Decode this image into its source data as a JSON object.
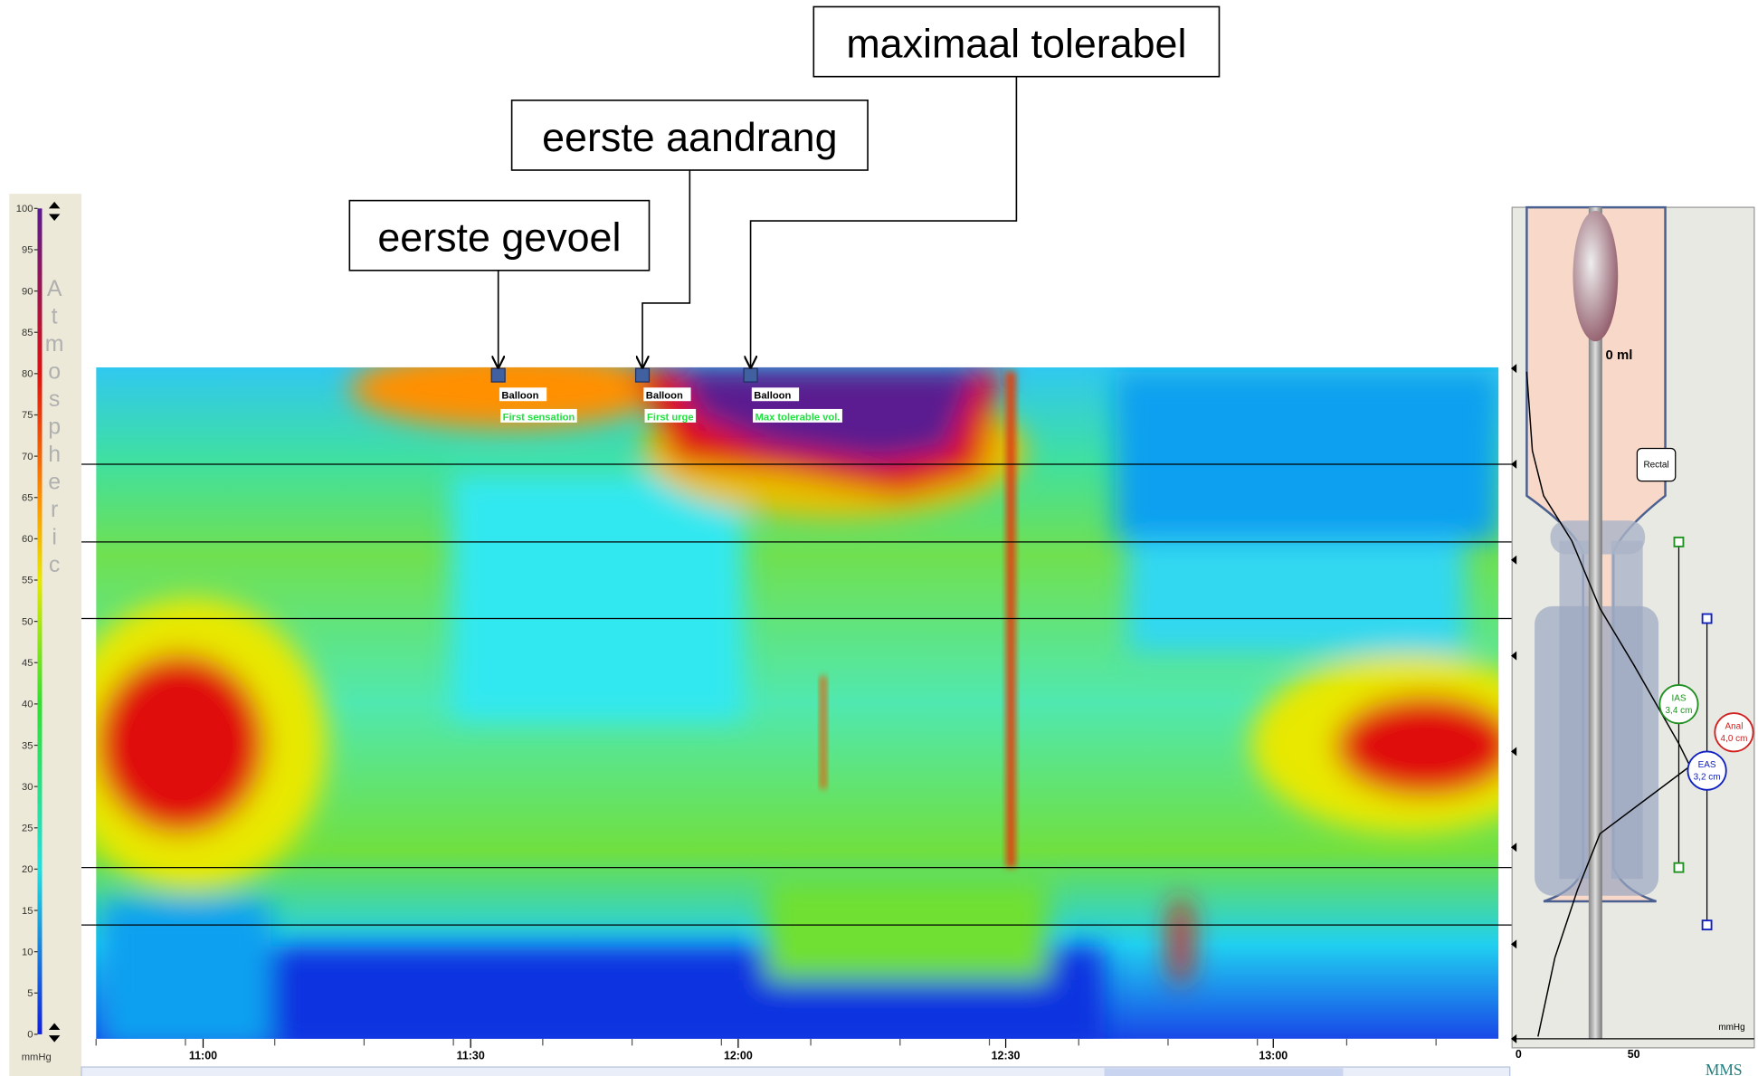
{
  "callouts": [
    "eerste gevoel",
    "eerste aandrang",
    "maximaal tolerabel"
  ],
  "events": [
    {
      "name": "Balloon",
      "label": "First sensation"
    },
    {
      "name": "Balloon",
      "label": "First urge"
    },
    {
      "name": "Balloon",
      "label": "Max tolerable vol."
    }
  ],
  "scale": {
    "ticks": [
      "100",
      "95",
      "90",
      "85",
      "80",
      "75",
      "70",
      "65",
      "60",
      "55",
      "50",
      "45",
      "40",
      "35",
      "30",
      "25",
      "20",
      "15",
      "10",
      "5",
      "0"
    ],
    "unit": "mmHg",
    "label": "Atmospheric"
  },
  "time_axis": [
    "11:00",
    "11:30",
    "12:00",
    "12:30",
    "13:00"
  ],
  "probe": {
    "volume": "0 ml",
    "rectal": "Rectal",
    "ias": {
      "name": "IAS",
      "length": "3,4 cm"
    },
    "eas": {
      "name": "EAS",
      "length": "3,2 cm"
    },
    "anal": {
      "name": "Anal",
      "length": "4,0 cm"
    },
    "axis_ticks": [
      "0",
      "50"
    ],
    "unit": "mmHg"
  },
  "logo": "MMS"
}
